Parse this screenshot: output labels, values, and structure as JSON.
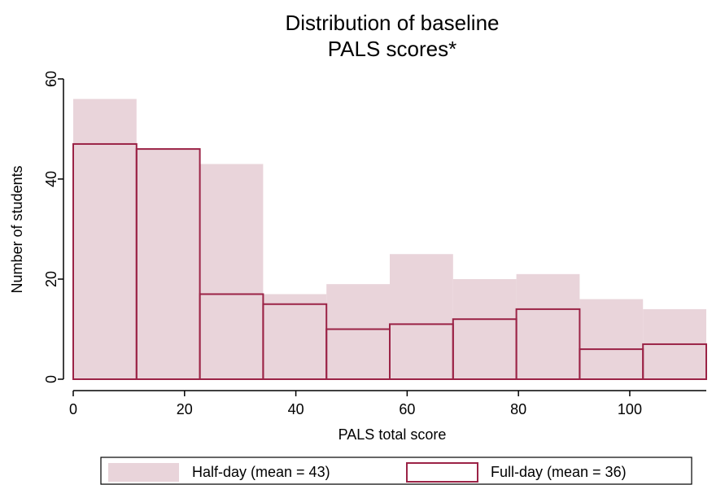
{
  "chart_data": {
    "type": "histogram",
    "title": [
      "Distribution of baseline",
      "PALS scores*"
    ],
    "x_label": "PALS total score",
    "y_label": "Number of students",
    "bins": [
      0,
      11.375,
      22.75,
      34.125,
      45.5,
      56.875,
      68.25,
      79.625,
      91,
      102.375,
      113.75
    ],
    "series": [
      {
        "name": "Half-day (mean = 43)",
        "color": "#e9d4da",
        "style": "filled",
        "values": [
          56,
          46,
          43,
          17,
          19,
          25,
          20,
          21,
          16,
          14
        ]
      },
      {
        "name": "Full-day (mean = 36)",
        "color": "#9b2346",
        "style": "outline",
        "values": [
          47,
          46,
          17,
          15,
          10,
          11,
          12,
          14,
          6,
          7
        ]
      }
    ],
    "xlim": [
      0,
      113.75
    ],
    "xticks": [
      0,
      20,
      40,
      60,
      80,
      100
    ],
    "ylim": [
      0,
      60
    ],
    "yticks": [
      0,
      20,
      40,
      60
    ],
    "legend": "bottom"
  }
}
